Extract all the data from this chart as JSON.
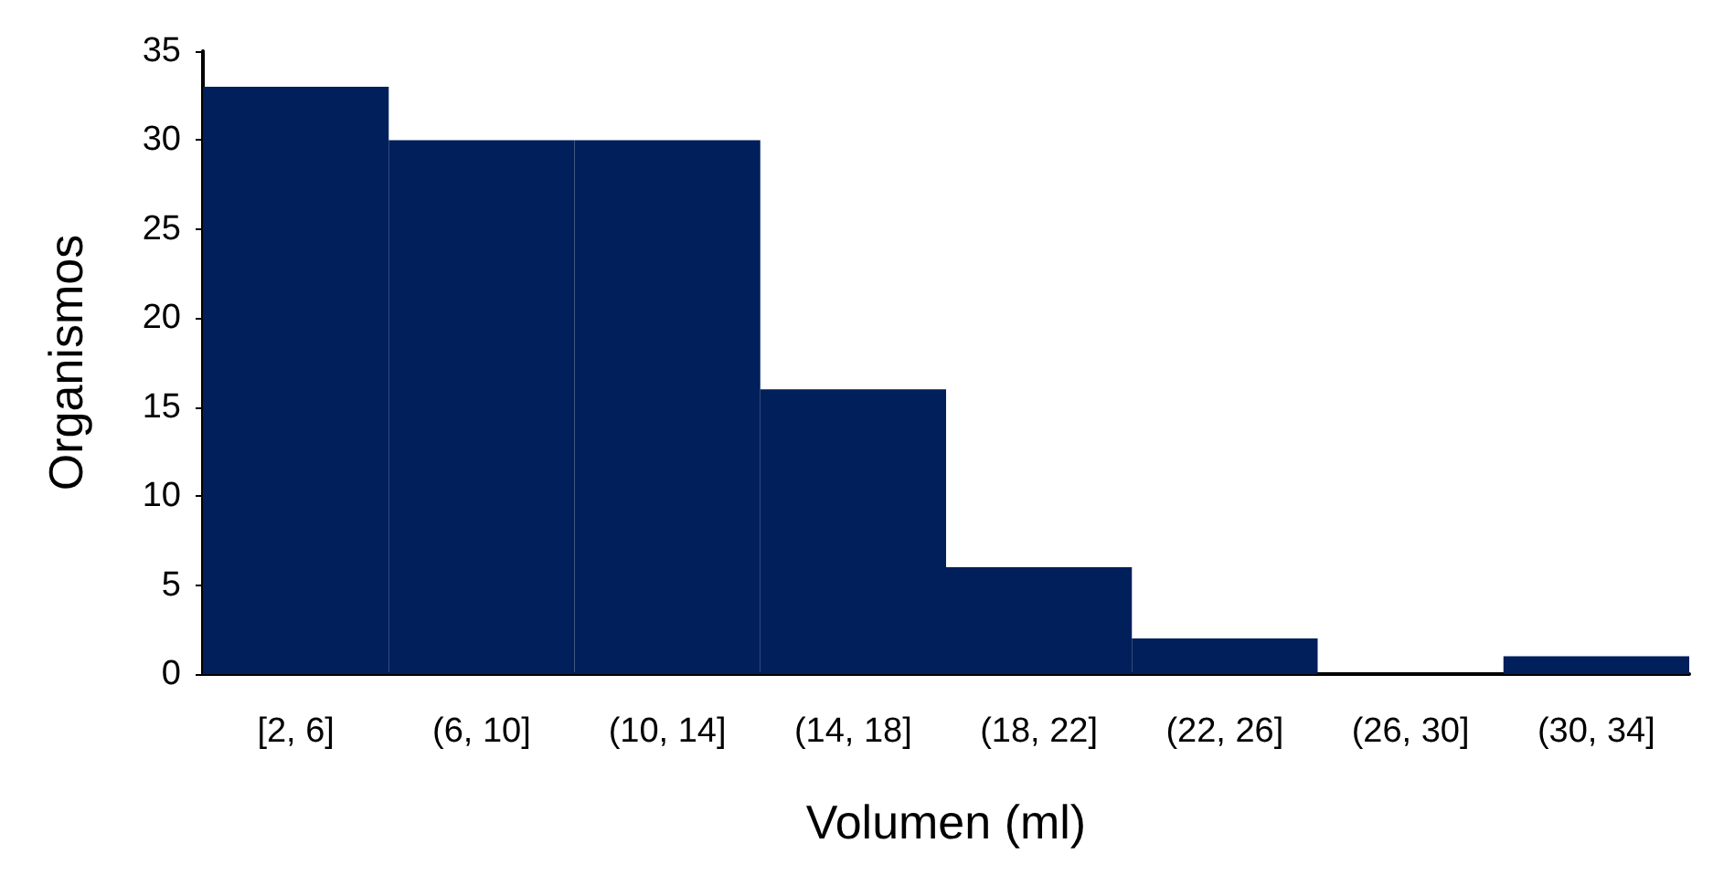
{
  "chart_data": {
    "type": "bar",
    "xlabel": "Volumen (ml)",
    "ylabel": "Organismos",
    "categories": [
      "[2, 6]",
      "(6, 10]",
      "(10, 14]",
      "(14, 18]",
      "(18, 22]",
      "(22, 26]",
      "(26, 30]",
      "(30, 34]"
    ],
    "values": [
      33,
      30,
      30,
      16,
      6,
      2,
      0,
      1
    ],
    "color": "#001f5b",
    "ylim": [
      0,
      35
    ],
    "yticks": [
      0,
      5,
      10,
      15,
      20,
      25,
      30,
      35
    ],
    "grid": false
  }
}
